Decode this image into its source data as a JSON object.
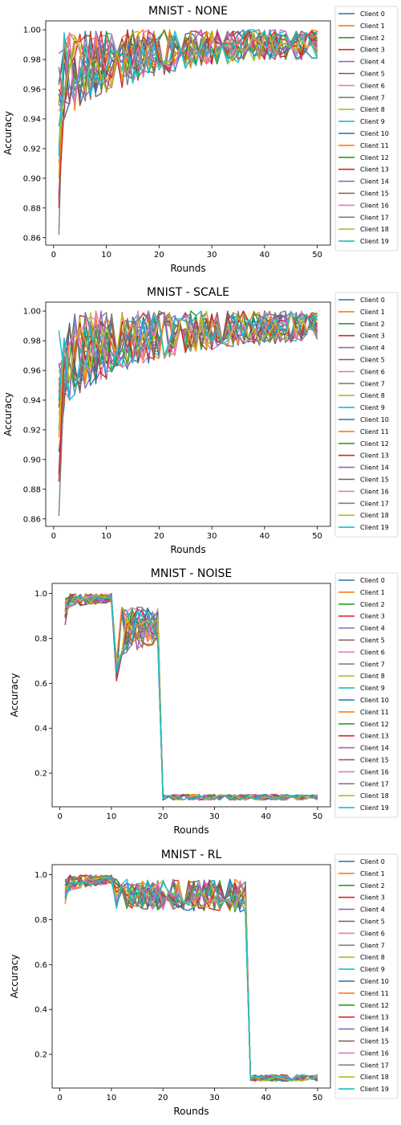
{
  "colors": [
    "#1f77b4",
    "#ff7f0e",
    "#2ca02c",
    "#d62728",
    "#9467bd",
    "#8c564b",
    "#e377c2",
    "#7f7f7f",
    "#bcbd22",
    "#17becf"
  ],
  "chart_data": [
    {
      "type": "line",
      "title": "MNIST - NONE",
      "xlabel": "Rounds",
      "ylabel": "Accuracy",
      "xlim": [
        -1.5,
        52.5
      ],
      "ylim": [
        0.855,
        1.006
      ],
      "xticks": [
        "0",
        "10",
        "20",
        "30",
        "40",
        "50"
      ],
      "yticks": [
        "0.86",
        "0.88",
        "0.90",
        "0.92",
        "0.94",
        "0.96",
        "0.98",
        "1.00"
      ],
      "ytick_values": [
        0.86,
        0.88,
        0.9,
        0.92,
        0.94,
        0.96,
        0.98,
        1.0
      ],
      "legend": [
        "Client 0",
        "Client 1",
        "Client 2",
        "Client 3",
        "Client 4",
        "Client 5",
        "Client 6",
        "Client 7",
        "Client 8",
        "Client 9",
        "Client 10",
        "Client 11",
        "Client 12",
        "Client 13",
        "Client 14",
        "Client 15",
        "Client 16",
        "Client 17",
        "Client 18",
        "Client 19"
      ],
      "rounds": [
        1,
        50
      ],
      "start_values": [
        0.885,
        0.95,
        0.965,
        0.88,
        0.984,
        0.963,
        0.92,
        0.862,
        0.9,
        0.915,
        0.957,
        0.91,
        0.95,
        0.888,
        0.975,
        0.96,
        0.945,
        0.955,
        0.925,
        0.935
      ],
      "phases": [
        {
          "from": 2,
          "to": 50,
          "low_start": 0.94,
          "low_end": 0.983,
          "high": 1.0,
          "ease": 3.0
        }
      ]
    },
    {
      "type": "line",
      "title": "MNIST - SCALE",
      "xlabel": "Rounds",
      "ylabel": "Accuracy",
      "xlim": [
        -1.5,
        52.5
      ],
      "ylim": [
        0.855,
        1.006
      ],
      "xticks": [
        "0",
        "10",
        "20",
        "30",
        "40",
        "50"
      ],
      "yticks": [
        "0.86",
        "0.88",
        "0.90",
        "0.92",
        "0.94",
        "0.96",
        "0.98",
        "1.00"
      ],
      "ytick_values": [
        0.86,
        0.88,
        0.9,
        0.92,
        0.94,
        0.96,
        0.98,
        1.0
      ],
      "legend": [
        "Client 0",
        "Client 1",
        "Client 2",
        "Client 3",
        "Client 4",
        "Client 5",
        "Client 6",
        "Client 7",
        "Client 8",
        "Client 9",
        "Client 10",
        "Client 11",
        "Client 12",
        "Client 13",
        "Client 14",
        "Client 15",
        "Client 16",
        "Client 17",
        "Client 18",
        "Client 19"
      ],
      "rounds": [
        1,
        50
      ],
      "start_values": [
        0.905,
        0.94,
        0.955,
        0.885,
        0.965,
        0.95,
        0.96,
        0.862,
        0.93,
        0.987,
        0.945,
        0.915,
        0.94,
        0.89,
        0.962,
        0.935,
        0.95,
        0.945,
        0.92,
        0.94
      ],
      "phases": [
        {
          "from": 2,
          "to": 50,
          "low_start": 0.935,
          "low_end": 0.982,
          "high": 1.0,
          "ease": 3.0
        }
      ]
    },
    {
      "type": "line",
      "title": "MNIST - NOISE",
      "xlabel": "Rounds",
      "ylabel": "Accuracy",
      "xlim": [
        -1.5,
        52.5
      ],
      "ylim": [
        0.05,
        1.045
      ],
      "xticks": [
        "0",
        "10",
        "20",
        "30",
        "40",
        "50"
      ],
      "yticks": [
        "0.2",
        "0.4",
        "0.6",
        "0.8",
        "1.0"
      ],
      "ytick_values": [
        0.2,
        0.4,
        0.6,
        0.8,
        1.0
      ],
      "legend": [
        "Client 0",
        "Client 1",
        "Client 2",
        "Client 3",
        "Client 4",
        "Client 5",
        "Client 6",
        "Client 7",
        "Client 8",
        "Client 9",
        "Client 10",
        "Client 11",
        "Client 12",
        "Client 13",
        "Client 14",
        "Client 15",
        "Client 16",
        "Client 17",
        "Client 18",
        "Client 19"
      ],
      "rounds": [
        1,
        50
      ],
      "start_values": [
        0.92,
        0.95,
        0.96,
        0.9,
        0.91,
        0.93,
        0.94,
        0.98,
        0.95,
        0.93,
        0.9,
        0.96,
        0.97,
        0.89,
        0.92,
        0.86,
        0.94,
        0.96,
        0.91,
        0.95
      ],
      "phases": [
        {
          "from": 2,
          "to": 10,
          "low_start": 0.94,
          "low_end": 0.96,
          "high": 1.0,
          "ease": 0
        },
        {
          "from": 11,
          "to": 11,
          "low_start": 0.6,
          "low_end": 0.6,
          "high": 0.7,
          "ease": 0
        },
        {
          "from": 12,
          "to": 19,
          "low_start": 0.72,
          "low_end": 0.78,
          "high": 0.94,
          "ease": 0
        },
        {
          "from": 20,
          "to": 50,
          "low_start": 0.08,
          "low_end": 0.08,
          "high": 0.105,
          "ease": 0
        }
      ]
    },
    {
      "type": "line",
      "title": "MNIST - RL",
      "xlabel": "Rounds",
      "ylabel": "Accuracy",
      "xlim": [
        -1.5,
        52.5
      ],
      "ylim": [
        0.05,
        1.045
      ],
      "xticks": [
        "0",
        "10",
        "20",
        "30",
        "40",
        "50"
      ],
      "yticks": [
        "0.2",
        "0.4",
        "0.6",
        "0.8",
        "1.0"
      ],
      "ytick_values": [
        0.2,
        0.4,
        0.6,
        0.8,
        1.0
      ],
      "legend": [
        "Client 0",
        "Client 1",
        "Client 2",
        "Client 3",
        "Client 4",
        "Client 5",
        "Client 6",
        "Client 7",
        "Client 8",
        "Client 9",
        "Client 10",
        "Client 11",
        "Client 12",
        "Client 13",
        "Client 14",
        "Client 15",
        "Client 16",
        "Client 17",
        "Client 18",
        "Client 19"
      ],
      "rounds": [
        1,
        50
      ],
      "start_values": [
        0.9,
        0.87,
        0.93,
        0.91,
        0.95,
        0.97,
        0.92,
        0.96,
        0.94,
        0.9,
        0.93,
        0.95,
        0.96,
        0.92,
        0.94,
        0.97,
        0.91,
        0.98,
        0.93,
        0.89
      ],
      "phases": [
        {
          "from": 2,
          "to": 10,
          "low_start": 0.93,
          "low_end": 0.96,
          "high": 1.0,
          "ease": 0
        },
        {
          "from": 11,
          "to": 36,
          "low_start": 0.85,
          "low_end": 0.83,
          "high": 0.98,
          "ease": 0
        },
        {
          "from": 37,
          "to": 50,
          "low_start": 0.08,
          "low_end": 0.08,
          "high": 0.11,
          "ease": 0
        }
      ]
    }
  ]
}
